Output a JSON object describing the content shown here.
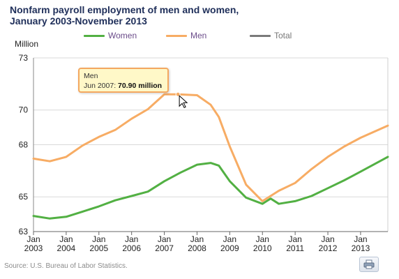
{
  "title_line1": "Nonfarm payroll employment of men and women,",
  "title_line2": "January 2003-November 2013",
  "ylabel": "Million",
  "source": "Source: U.S. Bureau of Labor Statistics.",
  "print_icon": "print-icon",
  "tooltip": {
    "series": "Men",
    "label": "Jun 2007:",
    "value": "70.90 million"
  },
  "legend": [
    {
      "name": "Women",
      "color": "#52b043",
      "visible": true
    },
    {
      "name": "Men",
      "color": "#f7ac64",
      "visible": true
    },
    {
      "name": "Total",
      "color": "#7a7a7a",
      "visible": false
    }
  ],
  "chart_data": {
    "type": "line",
    "title": "Nonfarm payroll employment of men and women, January 2003-November 2013",
    "ylabel": "Million",
    "ylim": [
      63,
      73
    ],
    "yticks": [
      63,
      65,
      68,
      70,
      73
    ],
    "xlim": [
      "2003-01",
      "2013-11"
    ],
    "xticks": [
      {
        "month": "Jan",
        "year": "2003"
      },
      {
        "month": "Jan",
        "year": "2004"
      },
      {
        "month": "Jan",
        "year": "2005"
      },
      {
        "month": "Jan",
        "year": "2006"
      },
      {
        "month": "Jan",
        "year": "2007"
      },
      {
        "month": "Jan",
        "year": "2008"
      },
      {
        "month": "Jan",
        "year": "2009"
      },
      {
        "month": "Jan",
        "year": "2010"
      },
      {
        "month": "Jan",
        "year": "2011"
      },
      {
        "month": "Jan",
        "year": "2012"
      },
      {
        "month": "Jan",
        "year": "2013"
      }
    ],
    "grid": "horizontal",
    "series": [
      {
        "name": "Women",
        "color": "#52b043",
        "points": [
          [
            "2003-01",
            63.9
          ],
          [
            "2003-07",
            63.75
          ],
          [
            "2004-01",
            63.85
          ],
          [
            "2004-07",
            64.15
          ],
          [
            "2005-01",
            64.45
          ],
          [
            "2005-07",
            64.8
          ],
          [
            "2006-01",
            65.05
          ],
          [
            "2006-07",
            65.3
          ],
          [
            "2007-01",
            65.9
          ],
          [
            "2007-07",
            66.4
          ],
          [
            "2008-01",
            66.85
          ],
          [
            "2008-06",
            66.95
          ],
          [
            "2008-09",
            66.8
          ],
          [
            "2009-01",
            65.9
          ],
          [
            "2009-07",
            64.95
          ],
          [
            "2010-01",
            64.6
          ],
          [
            "2010-04",
            64.9
          ],
          [
            "2010-07",
            64.6
          ],
          [
            "2011-01",
            64.75
          ],
          [
            "2011-07",
            65.05
          ],
          [
            "2012-01",
            65.5
          ],
          [
            "2012-07",
            65.95
          ],
          [
            "2013-01",
            66.45
          ],
          [
            "2013-11",
            67.3
          ]
        ]
      },
      {
        "name": "Men",
        "color": "#f7ac64",
        "points": [
          [
            "2003-01",
            67.2
          ],
          [
            "2003-07",
            67.05
          ],
          [
            "2004-01",
            67.3
          ],
          [
            "2004-07",
            67.95
          ],
          [
            "2005-01",
            68.45
          ],
          [
            "2005-07",
            68.85
          ],
          [
            "2006-01",
            69.5
          ],
          [
            "2006-07",
            70.05
          ],
          [
            "2007-01",
            70.9
          ],
          [
            "2007-06",
            70.9
          ],
          [
            "2008-01",
            70.85
          ],
          [
            "2008-06",
            70.3
          ],
          [
            "2008-09",
            69.6
          ],
          [
            "2009-01",
            67.9
          ],
          [
            "2009-07",
            65.7
          ],
          [
            "2010-01",
            64.75
          ],
          [
            "2010-07",
            65.35
          ],
          [
            "2011-01",
            65.8
          ],
          [
            "2011-07",
            66.6
          ],
          [
            "2012-01",
            67.3
          ],
          [
            "2012-07",
            67.9
          ],
          [
            "2013-01",
            68.4
          ],
          [
            "2013-11",
            69.1
          ]
        ]
      }
    ]
  }
}
